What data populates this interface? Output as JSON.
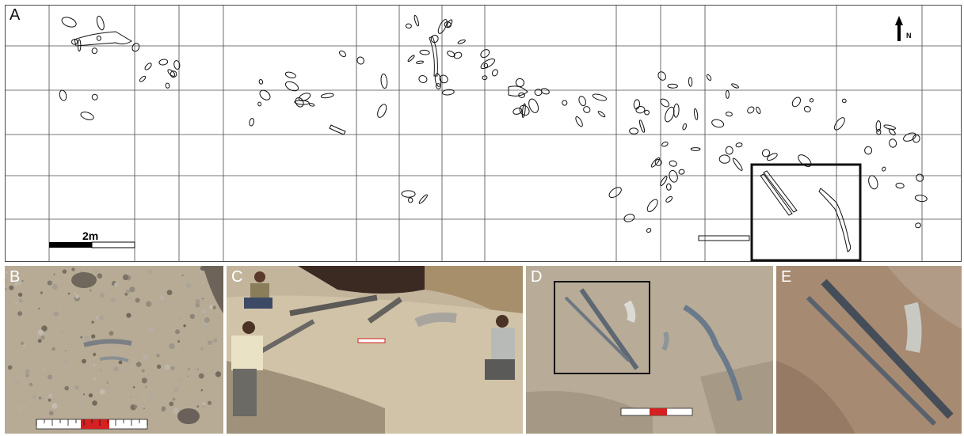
{
  "panels": {
    "a": {
      "letter": "A",
      "scale_label": "2m",
      "north_label": "N"
    },
    "b": {
      "letter": "B"
    },
    "c": {
      "letter": "C"
    },
    "d": {
      "letter": "D"
    },
    "e": {
      "letter": "E"
    }
  },
  "colors": {
    "map_line": "#000000",
    "grid_line": "#4a4a4a",
    "scale_bar_red": "#d42020",
    "sediment_light": "#c8bba4",
    "sediment_mid": "#b2a38a",
    "bone_gray": "#7e848a"
  }
}
